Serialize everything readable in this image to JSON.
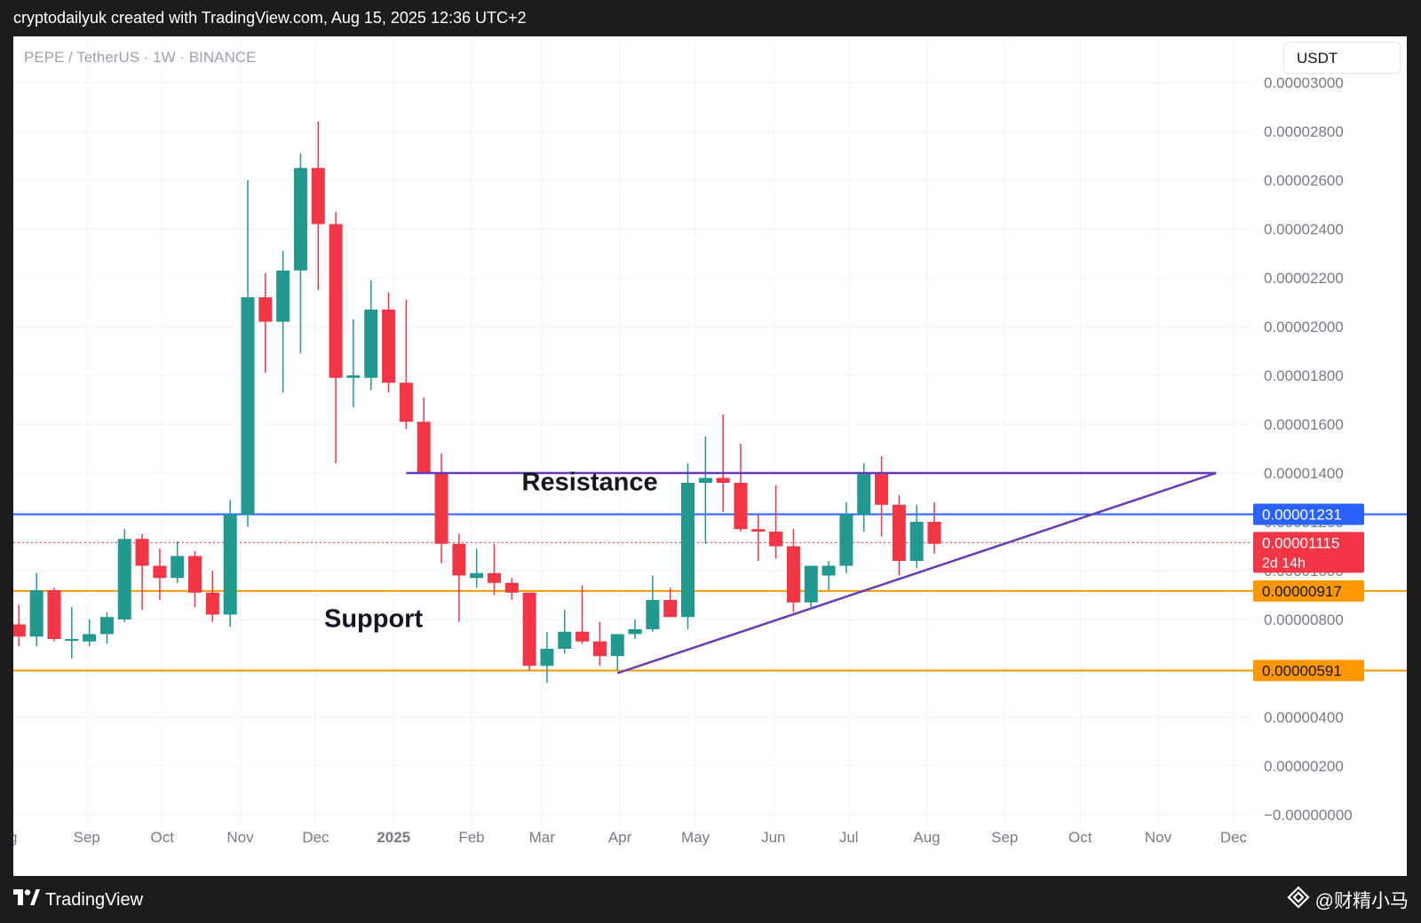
{
  "header": {
    "title": "cryptodailyuk created with TradingView.com, Aug 15, 2025 12:36 UTC+2"
  },
  "symbol_label": "PEPE / TetherUS · 1W · BINANCE",
  "currency_button": "USDT",
  "footer": {
    "logo_icon": "tradingview-logo-icon",
    "brand": "TradingView",
    "watermark_icon": "diamond-logo-icon",
    "watermark": "@财精小马"
  },
  "colors": {
    "up": "#22998e",
    "down": "#f23645",
    "blue_line": "#2962ff",
    "orange_line": "#ff9800",
    "purple_line": "#673ab7",
    "grid": "#f0f3fa",
    "axis_text": "#787b86"
  },
  "chart_data": {
    "type": "candlestick",
    "interval": "1W",
    "title": "PEPE / TetherUS · 1W · BINANCE",
    "y_axis": {
      "position": "right",
      "ylim": [
        -2e-07,
        3e-06
      ],
      "tick_values": [
        3e-05,
        2.8e-05,
        2.6e-05,
        2.4e-05,
        2.2e-05,
        2e-05,
        1.8e-05,
        1.6e-05,
        1.4e-05,
        1.2e-05,
        1e-05,
        8e-06,
        6e-06,
        4e-06,
        2e-06,
        0
      ],
      "tick_labels": [
        "0.00003000",
        "0.00002800",
        "0.00002600",
        "0.00002400",
        "0.00002200",
        "0.00002000",
        "0.00001800",
        "0.00001600",
        "0.00001400",
        "0.00001200",
        "0.00001000",
        "0.00000800",
        "0.00000600",
        "0.00000400",
        "0.00000200",
        "−0.00000000"
      ]
    },
    "x_axis": {
      "tick_labels": [
        "ug",
        "Sep",
        "Oct",
        "Nov",
        "Dec",
        "2025",
        "Feb",
        "Mar",
        "Apr",
        "May",
        "Jun",
        "Jul",
        "Aug",
        "Sep",
        "Oct",
        "Nov",
        "Dec"
      ],
      "tick_dates": [
        "2024-08-01",
        "2024-09-01",
        "2024-10-01",
        "2024-11-01",
        "2024-12-01",
        "2025-01-01",
        "2025-02-01",
        "2025-03-01",
        "2025-04-01",
        "2025-05-01",
        "2025-06-01",
        "2025-07-01",
        "2025-08-01",
        "2025-09-01",
        "2025-10-01",
        "2025-11-01",
        "2025-12-01"
      ]
    },
    "candles": [
      {
        "date": "2024-07-29",
        "o": 7.9e-06,
        "h": 8.8e-06,
        "l": 7e-06,
        "c": 7.5e-06
      },
      {
        "date": "2024-08-05",
        "o": 7.8e-06,
        "h": 8.6e-06,
        "l": 6.9e-06,
        "c": 7.3e-06
      },
      {
        "date": "2024-08-12",
        "o": 7.3e-06,
        "h": 9.9e-06,
        "l": 6.9e-06,
        "c": 9.2e-06
      },
      {
        "date": "2024-08-19",
        "o": 9.2e-06,
        "h": 9.3e-06,
        "l": 7.1e-06,
        "c": 7.2e-06
      },
      {
        "date": "2024-08-26",
        "o": 7.2e-06,
        "h": 8.5e-06,
        "l": 6.4e-06,
        "c": 7.2e-06
      },
      {
        "date": "2024-09-02",
        "o": 7.1e-06,
        "h": 8e-06,
        "l": 6.9e-06,
        "c": 7.4e-06
      },
      {
        "date": "2024-09-09",
        "o": 7.4e-06,
        "h": 8.3e-06,
        "l": 7e-06,
        "c": 8.1e-06
      },
      {
        "date": "2024-09-16",
        "o": 8e-06,
        "h": 1.17e-05,
        "l": 7.9e-06,
        "c": 1.13e-05
      },
      {
        "date": "2024-09-23",
        "o": 1.13e-05,
        "h": 1.15e-05,
        "l": 8.4e-06,
        "c": 1.02e-05
      },
      {
        "date": "2024-09-30",
        "o": 1.02e-05,
        "h": 1.09e-05,
        "l": 8.8e-06,
        "c": 9.7e-06
      },
      {
        "date": "2024-10-07",
        "o": 9.7e-06,
        "h": 1.12e-05,
        "l": 9.5e-06,
        "c": 1.06e-05
      },
      {
        "date": "2024-10-14",
        "o": 1.06e-05,
        "h": 1.08e-05,
        "l": 8.5e-06,
        "c": 9.1e-06
      },
      {
        "date": "2024-10-21",
        "o": 9.1e-06,
        "h": 1e-05,
        "l": 7.9e-06,
        "c": 8.2e-06
      },
      {
        "date": "2024-10-28",
        "o": 8.2e-06,
        "h": 1.29e-05,
        "l": 7.7e-06,
        "c": 1.23e-05
      },
      {
        "date": "2024-11-04",
        "o": 1.23e-05,
        "h": 2.6e-05,
        "l": 1.18e-05,
        "c": 2.12e-05
      },
      {
        "date": "2024-11-11",
        "o": 2.12e-05,
        "h": 2.22e-05,
        "l": 1.81e-05,
        "c": 2.02e-05
      },
      {
        "date": "2024-11-18",
        "o": 2.02e-05,
        "h": 2.31e-05,
        "l": 1.73e-05,
        "c": 2.23e-05
      },
      {
        "date": "2024-11-25",
        "o": 2.23e-05,
        "h": 2.71e-05,
        "l": 1.89e-05,
        "c": 2.65e-05
      },
      {
        "date": "2024-12-02",
        "o": 2.65e-05,
        "h": 2.84e-05,
        "l": 2.15e-05,
        "c": 2.42e-05
      },
      {
        "date": "2024-12-09",
        "o": 2.42e-05,
        "h": 2.47e-05,
        "l": 1.44e-05,
        "c": 1.79e-05
      },
      {
        "date": "2024-12-16",
        "o": 1.79e-05,
        "h": 2.03e-05,
        "l": 1.67e-05,
        "c": 1.8e-05
      },
      {
        "date": "2024-12-23",
        "o": 1.79e-05,
        "h": 2.19e-05,
        "l": 1.74e-05,
        "c": 2.07e-05
      },
      {
        "date": "2024-12-30",
        "o": 2.07e-05,
        "h": 2.14e-05,
        "l": 1.73e-05,
        "c": 1.77e-05
      },
      {
        "date": "2025-01-06",
        "o": 1.77e-05,
        "h": 2.11e-05,
        "l": 1.58e-05,
        "c": 1.61e-05
      },
      {
        "date": "2025-01-13",
        "o": 1.61e-05,
        "h": 1.71e-05,
        "l": 1.4e-05,
        "c": 1.4e-05
      },
      {
        "date": "2025-01-20",
        "o": 1.4e-05,
        "h": 1.48e-05,
        "l": 1.03e-05,
        "c": 1.11e-05
      },
      {
        "date": "2025-01-27",
        "o": 1.11e-05,
        "h": 1.15e-05,
        "l": 7.9e-06,
        "c": 9.8e-06
      },
      {
        "date": "2025-02-03",
        "o": 9.7e-06,
        "h": 1.09e-05,
        "l": 9.3e-06,
        "c": 9.9e-06
      },
      {
        "date": "2025-02-10",
        "o": 9.9e-06,
        "h": 1.11e-05,
        "l": 9e-06,
        "c": 9.5e-06
      },
      {
        "date": "2025-02-17",
        "o": 9.5e-06,
        "h": 9.7e-06,
        "l": 8.8e-06,
        "c": 9.1e-06
      },
      {
        "date": "2025-02-24",
        "o": 9.1e-06,
        "h": 9.1e-06,
        "l": 5.9e-06,
        "c": 6.1e-06
      },
      {
        "date": "2025-03-03",
        "o": 6.1e-06,
        "h": 7.5e-06,
        "l": 5.4e-06,
        "c": 6.8e-06
      },
      {
        "date": "2025-03-10",
        "o": 6.8e-06,
        "h": 8.4e-06,
        "l": 6.6e-06,
        "c": 7.5e-06
      },
      {
        "date": "2025-03-17",
        "o": 7.5e-06,
        "h": 9.4e-06,
        "l": 7e-06,
        "c": 7.1e-06
      },
      {
        "date": "2025-03-24",
        "o": 7.1e-06,
        "h": 7.9e-06,
        "l": 6.1e-06,
        "c": 6.5e-06
      },
      {
        "date": "2025-03-31",
        "o": 6.5e-06,
        "h": 7.4e-06,
        "l": 5.9e-06,
        "c": 7.4e-06
      },
      {
        "date": "2025-04-07",
        "o": 7.4e-06,
        "h": 8e-06,
        "l": 7.2e-06,
        "c": 7.6e-06
      },
      {
        "date": "2025-04-14",
        "o": 7.6e-06,
        "h": 9.8e-06,
        "l": 7.5e-06,
        "c": 8.8e-06
      },
      {
        "date": "2025-04-21",
        "o": 8.8e-06,
        "h": 9.3e-06,
        "l": 8.1e-06,
        "c": 8.1e-06
      },
      {
        "date": "2025-04-28",
        "o": 8.1e-06,
        "h": 1.44e-05,
        "l": 7.6e-06,
        "c": 1.36e-05
      },
      {
        "date": "2025-05-05",
        "o": 1.36e-05,
        "h": 1.55e-05,
        "l": 1.11e-05,
        "c": 1.38e-05
      },
      {
        "date": "2025-05-12",
        "o": 1.38e-05,
        "h": 1.64e-05,
        "l": 1.24e-05,
        "c": 1.36e-05
      },
      {
        "date": "2025-05-19",
        "o": 1.36e-05,
        "h": 1.52e-05,
        "l": 1.16e-05,
        "c": 1.17e-05
      },
      {
        "date": "2025-05-26",
        "o": 1.17e-05,
        "h": 1.23e-05,
        "l": 1.04e-05,
        "c": 1.16e-05
      },
      {
        "date": "2025-06-02",
        "o": 1.16e-05,
        "h": 1.35e-05,
        "l": 1.05e-05,
        "c": 1.1e-05
      },
      {
        "date": "2025-06-09",
        "o": 1.1e-05,
        "h": 1.17e-05,
        "l": 8.3e-06,
        "c": 8.7e-06
      },
      {
        "date": "2025-06-16",
        "o": 8.7e-06,
        "h": 1.02e-05,
        "l": 8.5e-06,
        "c": 1.02e-05
      },
      {
        "date": "2025-06-23",
        "o": 9.8e-06,
        "h": 1.04e-05,
        "l": 9.2e-06,
        "c": 1.02e-05
      },
      {
        "date": "2025-06-30",
        "o": 1.02e-05,
        "h": 1.28e-05,
        "l": 9.9e-06,
        "c": 1.23e-05
      },
      {
        "date": "2025-07-07",
        "o": 1.23e-05,
        "h": 1.44e-05,
        "l": 1.16e-05,
        "c": 1.4e-05
      },
      {
        "date": "2025-07-14",
        "o": 1.4e-05,
        "h": 1.47e-05,
        "l": 1.14e-05,
        "c": 1.27e-05
      },
      {
        "date": "2025-07-21",
        "o": 1.27e-05,
        "h": 1.31e-05,
        "l": 9.8e-06,
        "c": 1.04e-05
      },
      {
        "date": "2025-07-28",
        "o": 1.04e-05,
        "h": 1.27e-05,
        "l": 1.01e-05,
        "c": 1.2e-05
      },
      {
        "date": "2025-08-04",
        "o": 1.2e-05,
        "h": 1.28e-05,
        "l": 1.07e-05,
        "c": 1.11e-05
      }
    ],
    "horizontal_lines": [
      {
        "name": "blue-level-line",
        "value": 1.231e-05,
        "color": "#2962ff",
        "style": "solid",
        "label": "0.00001231"
      },
      {
        "name": "support-line-upper",
        "value": 9.17e-06,
        "color": "#ff9800",
        "style": "solid",
        "label": "0.00000917"
      },
      {
        "name": "support-line-lower",
        "value": 5.91e-06,
        "color": "#ff9800",
        "style": "solid",
        "label": "0.00000591"
      }
    ],
    "resistance_line": {
      "value": 1.4e-05,
      "from": "2025-01-06",
      "to": "2025-11-24",
      "color": "#673ab7"
    },
    "trend_line": {
      "from": {
        "date": "2025-03-31",
        "value": 5.8e-06
      },
      "to": {
        "date": "2025-11-24",
        "value": 1.4e-05
      },
      "color": "#673ab7"
    },
    "current_price": {
      "value": 1.115e-05,
      "label": "0.00001115",
      "countdown": "2d 14h",
      "color": "#f23645"
    },
    "annotations": [
      {
        "text": "Resistance",
        "date": "2025-03-20",
        "value": 1.33e-05
      },
      {
        "text": "Support",
        "date": "2024-12-24",
        "value": 7.7e-06
      }
    ]
  }
}
